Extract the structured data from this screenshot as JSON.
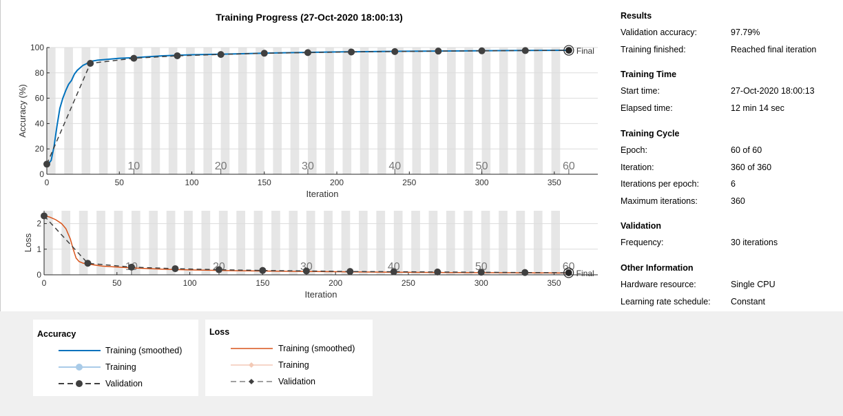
{
  "title": "Training Progress (27-Oct-2020 18:00:13)",
  "results": {
    "sections": [
      {
        "heading": "Results",
        "rows": [
          {
            "key": "Validation accuracy:",
            "value": "97.79%"
          },
          {
            "key": "Training finished:",
            "value": "Reached final iteration"
          }
        ]
      },
      {
        "heading": "Training Time",
        "rows": [
          {
            "key": "Start time:",
            "value": "27-Oct-2020 18:00:13"
          },
          {
            "key": "Elapsed time:",
            "value": "12 min 14 sec"
          }
        ]
      },
      {
        "heading": "Training Cycle",
        "rows": [
          {
            "key": "Epoch:",
            "value": "60 of 60"
          },
          {
            "key": "Iteration:",
            "value": "360 of 360"
          },
          {
            "key": "Iterations per epoch:",
            "value": "6"
          },
          {
            "key": "Maximum iterations:",
            "value": "360"
          }
        ]
      },
      {
        "heading": "Validation",
        "rows": [
          {
            "key": "Frequency:",
            "value": "30 iterations"
          }
        ]
      },
      {
        "heading": "Other Information",
        "rows": [
          {
            "key": "Hardware resource:",
            "value": "Single CPU"
          },
          {
            "key": "Learning rate schedule:",
            "value": "Constant"
          }
        ]
      }
    ]
  },
  "legend": {
    "accuracy": {
      "title": "Accuracy",
      "items": [
        "Training (smoothed)",
        "Training",
        "Validation"
      ]
    },
    "loss": {
      "title": "Loss",
      "items": [
        "Training (smoothed)",
        "Training",
        "Validation"
      ]
    }
  },
  "colors": {
    "accuracy_smoothed": "#0072bd",
    "accuracy_raw": "#a9cbe8",
    "loss_smoothed": "#d95319",
    "loss_raw": "#f3c9b5",
    "validation": "#404040",
    "epoch_band": "#e6e6e6"
  },
  "chart_data": [
    {
      "type": "line",
      "ylabel": "Accuracy (%)",
      "xlabel": "Iteration",
      "xlim": [
        0,
        380
      ],
      "ylim": [
        0,
        100
      ],
      "xticks": [
        0,
        50,
        100,
        150,
        200,
        250,
        300,
        350
      ],
      "yticks": [
        0,
        20,
        40,
        60,
        80,
        100
      ],
      "epoch_labels": [
        10,
        20,
        30,
        40,
        50,
        60
      ],
      "iterations_per_epoch": 6,
      "final_label": "Final",
      "series": [
        {
          "name": "Training (smoothed)",
          "x": [
            1,
            3,
            5,
            7,
            9,
            11,
            13,
            15,
            17,
            19,
            21,
            23,
            25,
            27,
            30,
            35,
            40,
            50,
            60,
            80,
            100,
            130,
            160,
            200,
            240,
            280,
            320,
            360
          ],
          "y": [
            8,
            11,
            22,
            38,
            52,
            60,
            66,
            71,
            74,
            79,
            82,
            84,
            86,
            87,
            89,
            90,
            90.5,
            91.5,
            92,
            93.5,
            94.3,
            95,
            95.8,
            96.5,
            97,
            97.3,
            97.6,
            97.8
          ]
        },
        {
          "name": "Validation",
          "x": [
            0,
            30,
            60,
            90,
            120,
            150,
            180,
            210,
            240,
            270,
            300,
            330,
            360
          ],
          "y": [
            8,
            87.5,
            91.5,
            93.5,
            94.5,
            95.5,
            96,
            96.5,
            96.8,
            97.2,
            97.4,
            97.6,
            97.79
          ]
        }
      ]
    },
    {
      "type": "line",
      "ylabel": "Loss",
      "xlabel": "Iteration",
      "xlim": [
        0,
        380
      ],
      "ylim": [
        0,
        2.5
      ],
      "xticks": [
        0,
        50,
        100,
        150,
        200,
        250,
        300,
        350
      ],
      "yticks": [
        0,
        1,
        2
      ],
      "epoch_labels": [
        10,
        20,
        30,
        40,
        50,
        60
      ],
      "iterations_per_epoch": 6,
      "final_label": "Final",
      "series": [
        {
          "name": "Training (smoothed)",
          "x": [
            1,
            4,
            8,
            12,
            15,
            18,
            20,
            22,
            24,
            27,
            30,
            35,
            40,
            50,
            60,
            80,
            100,
            130,
            160,
            200,
            240,
            280,
            320,
            360
          ],
          "y": [
            2.3,
            2.25,
            2.15,
            2.0,
            1.8,
            1.4,
            1.0,
            0.65,
            0.52,
            0.45,
            0.42,
            0.38,
            0.34,
            0.3,
            0.27,
            0.22,
            0.19,
            0.16,
            0.14,
            0.12,
            0.1,
            0.09,
            0.08,
            0.07
          ]
        },
        {
          "name": "Validation",
          "x": [
            0,
            30,
            60,
            90,
            120,
            150,
            180,
            210,
            240,
            270,
            300,
            330,
            360
          ],
          "y": [
            2.3,
            0.45,
            0.3,
            0.24,
            0.2,
            0.17,
            0.15,
            0.13,
            0.12,
            0.11,
            0.1,
            0.09,
            0.08
          ]
        }
      ]
    }
  ]
}
